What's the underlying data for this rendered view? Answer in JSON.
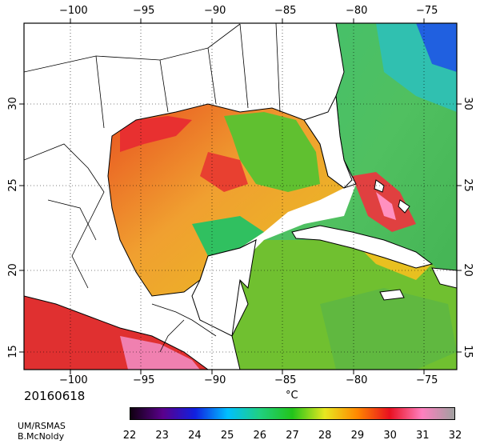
{
  "map": {
    "date": "20160618",
    "credit_line1": "UM/RSMAS",
    "credit_line2": "B.McNoldy",
    "unit": "°C",
    "lon_labels": [
      "−100",
      "−95",
      "−90",
      "−85",
      "−80",
      "−75"
    ],
    "lat_labels": [
      "30",
      "25",
      "20",
      "15"
    ],
    "colorbar_ticks": [
      "22",
      "23",
      "24",
      "25",
      "26",
      "27",
      "28",
      "29",
      "30",
      "31",
      "32"
    ],
    "colorbar_colors": [
      "#100010",
      "#5a008c",
      "#1020e0",
      "#00c0ff",
      "#20d080",
      "#22c41a",
      "#e8e820",
      "#ff8800",
      "#e81020",
      "#ff7fbf",
      "#a0a0a0"
    ]
  }
}
